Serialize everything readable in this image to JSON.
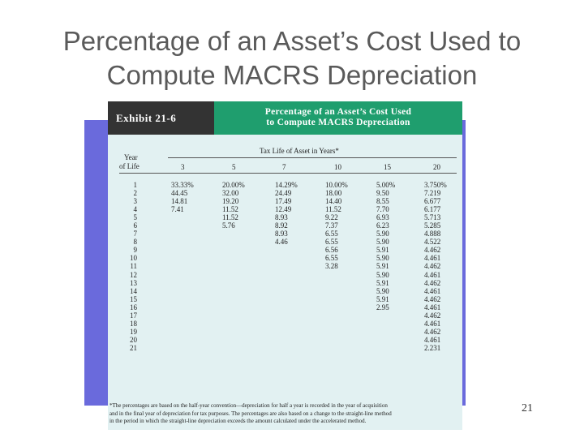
{
  "slide": {
    "title_line1": "Percentage of an Asset’s Cost Used to",
    "title_line2": "Compute MACRS Depreciation",
    "page_number": "21"
  },
  "exhibit": {
    "label": "Exhibit 21-6",
    "title_line1": "Percentage of an Asset’s Cost Used",
    "title_line2": "to Compute MACRS Depreciation",
    "year_label_1": "Year",
    "year_label_2": "of Life",
    "tax_life_header": "Tax Life of Asset in Years*",
    "columns": [
      {
        "header": "3",
        "values": [
          "33.33%",
          "44.45",
          "14.81",
          "7.41"
        ]
      },
      {
        "header": "5",
        "values": [
          "20.00%",
          "32.00",
          "19.20",
          "11.52",
          "11.52",
          "5.76"
        ]
      },
      {
        "header": "7",
        "values": [
          "14.29%",
          "24.49",
          "17.49",
          "12.49",
          "8.93",
          "8.92",
          "8.93",
          "4.46"
        ]
      },
      {
        "header": "10",
        "values": [
          "10.00%",
          "18.00",
          "14.40",
          "11.52",
          "9.22",
          "7.37",
          "6.55",
          "6.55",
          "6.56",
          "6.55",
          "3.28"
        ]
      },
      {
        "header": "15",
        "values": [
          "5.00%",
          "9.50",
          "8.55",
          "7.70",
          "6.93",
          "6.23",
          "5.90",
          "5.90",
          "5.91",
          "5.90",
          "5.91",
          "5.90",
          "5.91",
          "5.90",
          "5.91",
          "2.95"
        ]
      },
      {
        "header": "20",
        "values": [
          "3.750%",
          "7.219",
          "6.677",
          "6.177",
          "5.713",
          "5.285",
          "4.888",
          "4.522",
          "4.462",
          "4.461",
          "4.462",
          "4.461",
          "4.462",
          "4.461",
          "4.462",
          "4.461",
          "4.462",
          "4.461",
          "4.462",
          "4.461",
          "2.231"
        ]
      }
    ],
    "years": [
      "1",
      "2",
      "3",
      "4",
      "5",
      "6",
      "7",
      "8",
      "9",
      "10",
      "11",
      "12",
      "13",
      "14",
      "15",
      "16",
      "17",
      "18",
      "19",
      "20",
      "21"
    ],
    "footnote_line1": "*The percentages are based on the half-year convention—depreciation for half a year is recorded in the year of acquisition",
    "footnote_line2": "and in the final year of depreciation for tax purposes. The percentages are also based on a change to the straight-line method",
    "footnote_line3": "in the period in which the straight-line depreciation exceeds the amount calculated under the accelerated method."
  }
}
